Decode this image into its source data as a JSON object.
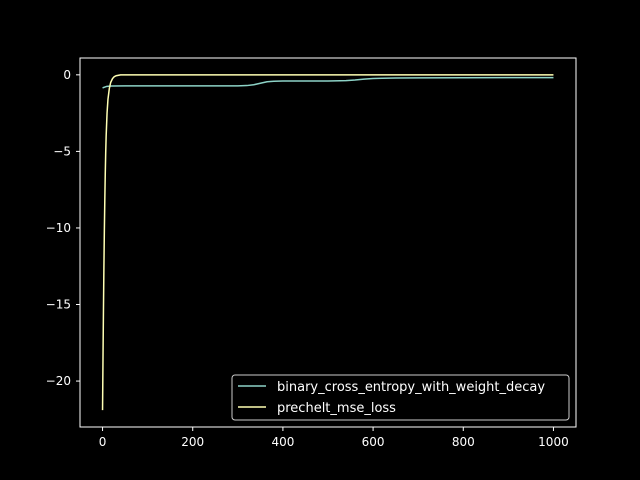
{
  "chart_data": {
    "type": "line",
    "title": "",
    "xlabel": "",
    "ylabel": "",
    "xlim": [
      -50,
      1050
    ],
    "ylim": [
      -23,
      1.1
    ],
    "xticks": [
      0,
      200,
      400,
      600,
      800,
      1000
    ],
    "yticks": [
      0,
      -5,
      -10,
      -15,
      -20
    ],
    "grid": false,
    "legend_position": "lower-right",
    "background": "#000000",
    "axes_color": "#ffffff",
    "series": [
      {
        "name": "binary_cross_entropy_with_weight_decay",
        "color": "#8dd3c7",
        "x": [
          0,
          5,
          10,
          20,
          50,
          100,
          200,
          300,
          320,
          335,
          350,
          365,
          380,
          400,
          450,
          500,
          540,
          560,
          580,
          600,
          620,
          650,
          700,
          800,
          900,
          1000
        ],
        "y": [
          -0.85,
          -0.8,
          -0.75,
          -0.73,
          -0.72,
          -0.72,
          -0.72,
          -0.72,
          -0.7,
          -0.65,
          -0.55,
          -0.45,
          -0.42,
          -0.4,
          -0.4,
          -0.4,
          -0.38,
          -0.34,
          -0.28,
          -0.24,
          -0.22,
          -0.21,
          -0.2,
          -0.19,
          -0.18,
          -0.18
        ]
      },
      {
        "name": "prechelt_mse_loss",
        "color": "#ffffb3",
        "x": [
          0,
          1,
          2,
          3,
          4,
          5,
          6,
          7,
          8,
          10,
          12,
          15,
          18,
          22,
          26,
          30,
          40,
          50,
          70,
          100,
          200,
          400,
          600,
          800,
          1000
        ],
        "y": [
          -21.9,
          -18.5,
          -15.4,
          -12.6,
          -10.2,
          -8.2,
          -6.5,
          -5.1,
          -4.0,
          -2.5,
          -1.6,
          -0.9,
          -0.5,
          -0.25,
          -0.12,
          -0.06,
          0.0,
          0.0,
          0.0,
          0.0,
          0.0,
          0.0,
          0.0,
          0.0,
          0.0
        ]
      }
    ]
  }
}
